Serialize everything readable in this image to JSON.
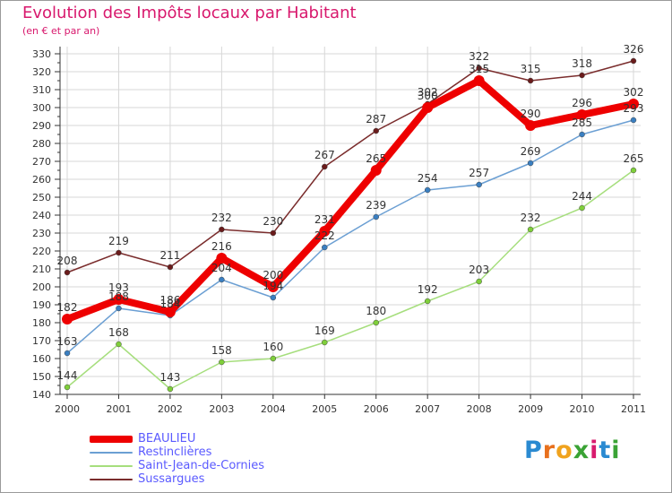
{
  "header": {
    "title": "Evolution des Impôts locaux par Habitant",
    "subtitle": "(en € et par an)"
  },
  "brand": {
    "letters": [
      "P",
      "r",
      "o",
      "x",
      "i",
      "t",
      "i"
    ],
    "colors": [
      "#2a8ad1",
      "#e8701d",
      "#f0a31e",
      "#3aa335",
      "#d81b6e",
      "#2a8ad1",
      "#3aa335"
    ]
  },
  "colors": {
    "title": "#d8186d",
    "legend_text": "#5a5aff",
    "axis": "#333333",
    "grid": "#d7d7d7",
    "plot_bg": "#ffffff"
  },
  "chart_data": {
    "type": "line",
    "title": "Evolution des Impôts locaux par Habitant",
    "subtitle": "(en € et par an)",
    "xlabel": "",
    "ylabel": "",
    "ylim": [
      140,
      330
    ],
    "ytick_step": 10,
    "grid": true,
    "categories": [
      "2000",
      "2001",
      "2002",
      "2003",
      "2004",
      "2005",
      "2006",
      "2007",
      "2008",
      "2009",
      "2010",
      "2011"
    ],
    "series": [
      {
        "name": "BEAULIEU",
        "values": [
          182,
          193,
          186,
          216,
          200,
          231,
          265,
          300,
          315,
          290,
          296,
          302
        ],
        "color": "#ee0000",
        "marker": "#ee0000",
        "emphasis": true
      },
      {
        "name": "Restinclières",
        "values": [
          163,
          188,
          184,
          204,
          194,
          222,
          239,
          254,
          257,
          269,
          285,
          293
        ],
        "color": "#6b9fd3",
        "marker": "#3a7fc1",
        "emphasis": false
      },
      {
        "name": "Saint-Jean-de-Cornies",
        "values": [
          144,
          168,
          143,
          158,
          160,
          169,
          180,
          192,
          203,
          232,
          244,
          265
        ],
        "color": "#a6de7d",
        "marker": "#7fcf3a",
        "emphasis": false
      },
      {
        "name": "Sussargues",
        "values": [
          208,
          219,
          211,
          232,
          230,
          267,
          287,
          302,
          322,
          315,
          318,
          326
        ],
        "color": "#7a2c2c",
        "marker": "#6a1b1b",
        "emphasis": false
      }
    ]
  }
}
